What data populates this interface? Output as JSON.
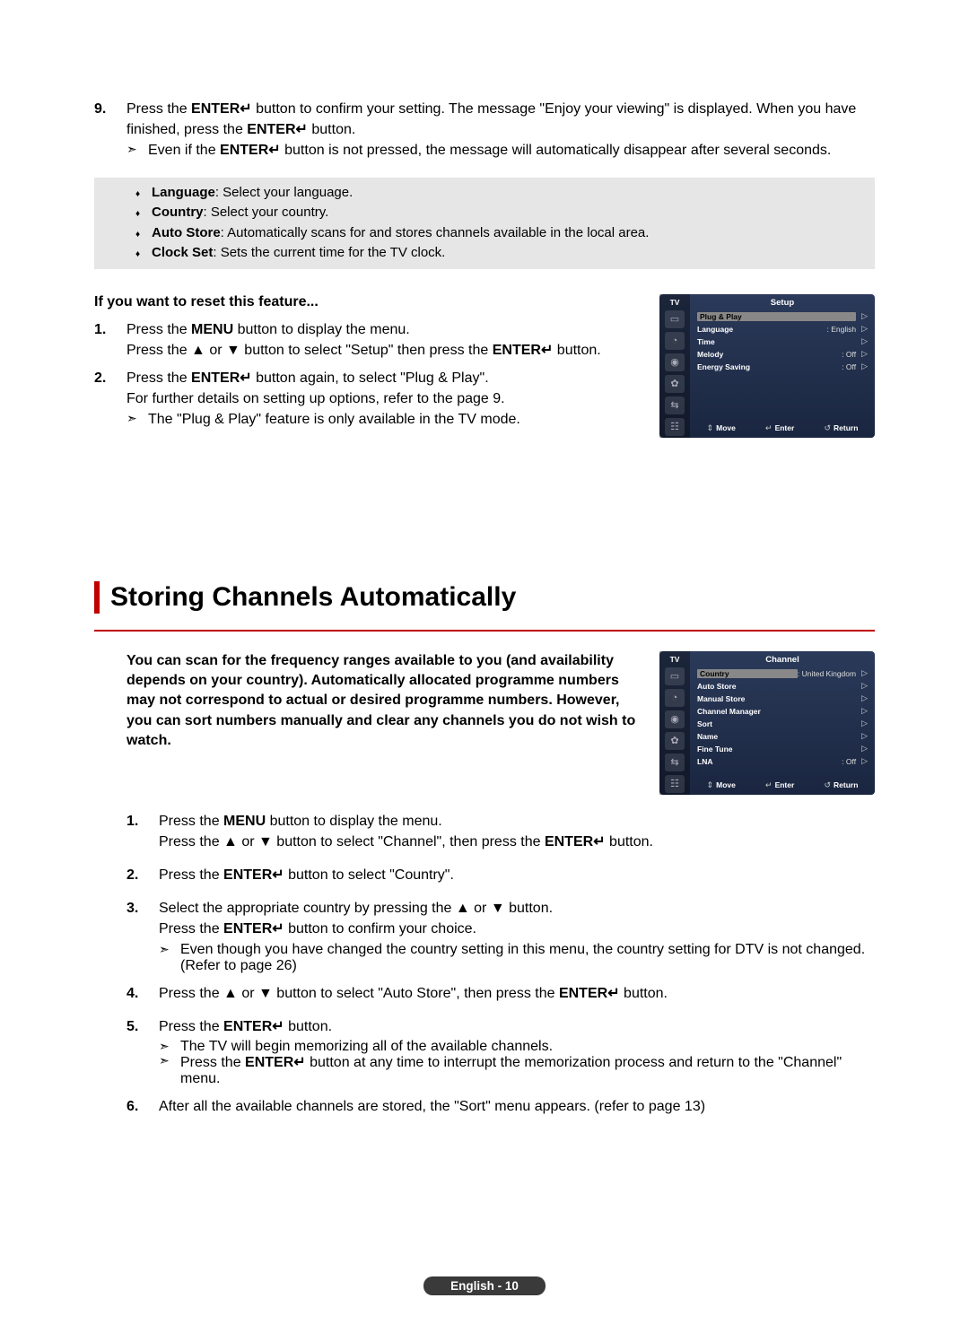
{
  "glyphs": {
    "enter": "↵",
    "up": "▲",
    "down": "▼",
    "note_arrow": "➣",
    "bullet": "♦",
    "updown": "⇕",
    "return": "↺",
    "caret": "▷"
  },
  "step9": {
    "num": "9.",
    "line1_a": "Press the ",
    "line1_b": "ENTER",
    "line1_c": " button to confirm your setting. The message \"Enjoy your viewing\" is displayed. When you have finished, press the ",
    "line1_d": "ENTER",
    "line1_e": " button.",
    "note_a": "Even if the ",
    "note_b": "ENTER",
    "note_c": " button is not pressed, the message will automatically disappear after several seconds."
  },
  "graybox": {
    "lang_label": "Language",
    "lang_text": ": Select your language.",
    "country_label": "Country",
    "country_text": ": Select your country.",
    "auto_label": "Auto Store",
    "auto_text": ": Automatically scans for and stores channels available in the local area.",
    "clock_label": "Clock Set",
    "clock_text": ": Sets the current time for the TV clock."
  },
  "reset": {
    "heading": "If you want to reset this feature...",
    "s1_num": "1.",
    "s1_a": "Press the ",
    "s1_b": "MENU",
    "s1_c": " button to display the menu.\nPress the ",
    "s1_d": " or ",
    "s1_e": " button to select \"Setup\" then press the ",
    "s1_f": "ENTER",
    "s1_g": "  button.",
    "s2_num": "2.",
    "s2_a": "Press the ",
    "s2_b": "ENTER",
    "s2_c": " button again, to select \"Plug & Play\".\nFor further details on setting up options, refer to the page 9.",
    "s2_note": "The \"Plug & Play\" feature is only available in the TV mode."
  },
  "osd1": {
    "tv": "TV",
    "title": "Setup",
    "rows": [
      {
        "label": "Plug & Play",
        "value": "",
        "selected": true
      },
      {
        "label": "Language",
        "value": ": English"
      },
      {
        "label": "Time",
        "value": ""
      },
      {
        "label": "Melody",
        "value": ": Off"
      },
      {
        "label": "Energy Saving",
        "value": ": Off"
      }
    ],
    "footer": {
      "move": "Move",
      "enter": "Enter",
      "return": "Return"
    }
  },
  "heading": "Storing Channels Automatically",
  "intro": "You can scan for the frequency ranges available to you (and availability depends on your country). Automatically allocated programme numbers may not correspond to actual or desired programme numbers. However, you can sort numbers manually and clear any channels you do not wish to watch.",
  "osd2": {
    "tv": "TV",
    "title": "Channel",
    "rows": [
      {
        "label": "Country",
        "value": ": United Kingdom",
        "selected": true
      },
      {
        "label": "Auto Store",
        "value": ""
      },
      {
        "label": "Manual Store",
        "value": ""
      },
      {
        "label": "Channel Manager",
        "value": ""
      },
      {
        "label": "Sort",
        "value": ""
      },
      {
        "label": "Name",
        "value": ""
      },
      {
        "label": "Fine Tune",
        "value": ""
      },
      {
        "label": "LNA",
        "value": ": Off"
      }
    ],
    "footer": {
      "move": "Move",
      "enter": "Enter",
      "return": "Return"
    }
  },
  "steps": {
    "s1": {
      "num": "1.",
      "a": "Press the ",
      "b": "MENU",
      "c": " button to display the menu.\nPress the ",
      "d": " or ",
      "e": " button to select \"Channel\", then press the ",
      "f": "ENTER",
      "g": "  button."
    },
    "s2": {
      "num": "2.",
      "a": "Press the ",
      "b": "ENTER",
      "c": " button to select \"Country\"."
    },
    "s3": {
      "num": "3.",
      "a": "Select the appropriate country by pressing the ",
      "b": " or ",
      "c": " button.\nPress the ",
      "d": "ENTER",
      "e": " button to confirm your choice.",
      "note": "Even though you have changed the country setting in this menu, the country setting for DTV is not changed. (Refer to page 26)"
    },
    "s4": {
      "num": "4.",
      "a": "Press the ",
      "b": " or ",
      "c": " button to select \"Auto Store\", then press the ",
      "d": "ENTER",
      "e": "  button."
    },
    "s5": {
      "num": "5.",
      "a": "Press the ",
      "b": "ENTER",
      "c": "  button.",
      "note1": "The TV will begin memorizing all of the available channels.",
      "note2a": "Press the ",
      "note2b": "ENTER",
      "note2c": " button at any time to interrupt the memorization process and return to the \"Channel\" menu."
    },
    "s6": {
      "num": "6.",
      "a": "After all the available channels are stored, the \"Sort\" menu appears. (refer to page 13)"
    }
  },
  "footer": "English - 10"
}
